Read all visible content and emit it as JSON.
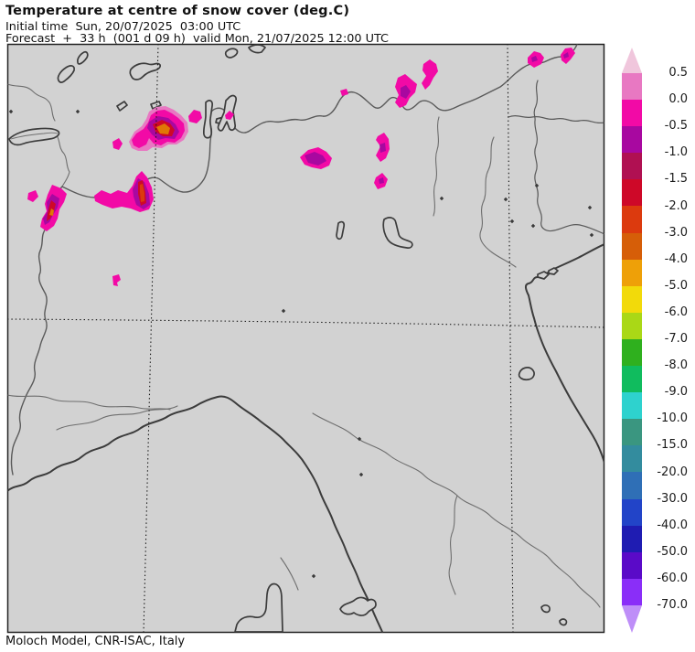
{
  "header": {
    "title": "Temperature at centre of snow cover (deg.C)",
    "initial_time": "Initial time  Sun, 20/07/2025  03:00 UTC",
    "forecast": "Forecast  +  33 h  (001 d 09 h)  valid Mon, 21/07/2025 12:00 UTC"
  },
  "footer": {
    "credit": "Moloch Model, CNR-ISAC, Italy"
  },
  "palette": {
    "map_bg": "#d2d2d2",
    "coast": "#3c3c3c",
    "border": "#5a5a5a",
    "border_thin": "#6e6e6e",
    "snow_magenta": "#f20aa6",
    "snow_dark_magenta": "#a808a0",
    "snow_red": "#ce0828",
    "snow_orange_red": "#dc3a0e",
    "snow_orange": "#e07806",
    "snow_orchid": "#e878c2"
  },
  "colorbar": {
    "over_arrow_color": "#f0c6dc",
    "under_arrow_color": "#be8ef8",
    "boundaries": [
      "0.5",
      "0.0",
      "-0.5",
      "-1.0",
      "-1.5",
      "-2.0",
      "-3.0",
      "-4.0",
      "-5.0",
      "-6.0",
      "-7.0",
      "-8.0",
      "-9.0",
      "-10.0",
      "-15.0",
      "-20.0",
      "-30.0",
      "-40.0",
      "-50.0",
      "-60.0",
      "-70.0"
    ],
    "segment_colors": [
      "#e878c2",
      "#f20aa6",
      "#a808a0",
      "#b01052",
      "#ce0828",
      "#dc3a0e",
      "#d65e08",
      "#eea008",
      "#f2da0a",
      "#aad816",
      "#2fb01e",
      "#10bc5e",
      "#2ed2ce",
      "#3a9680",
      "#338c9e",
      "#2f6fb6",
      "#2244c8",
      "#1f1cb2",
      "#5a0ac8",
      "#8a2ef8"
    ]
  }
}
